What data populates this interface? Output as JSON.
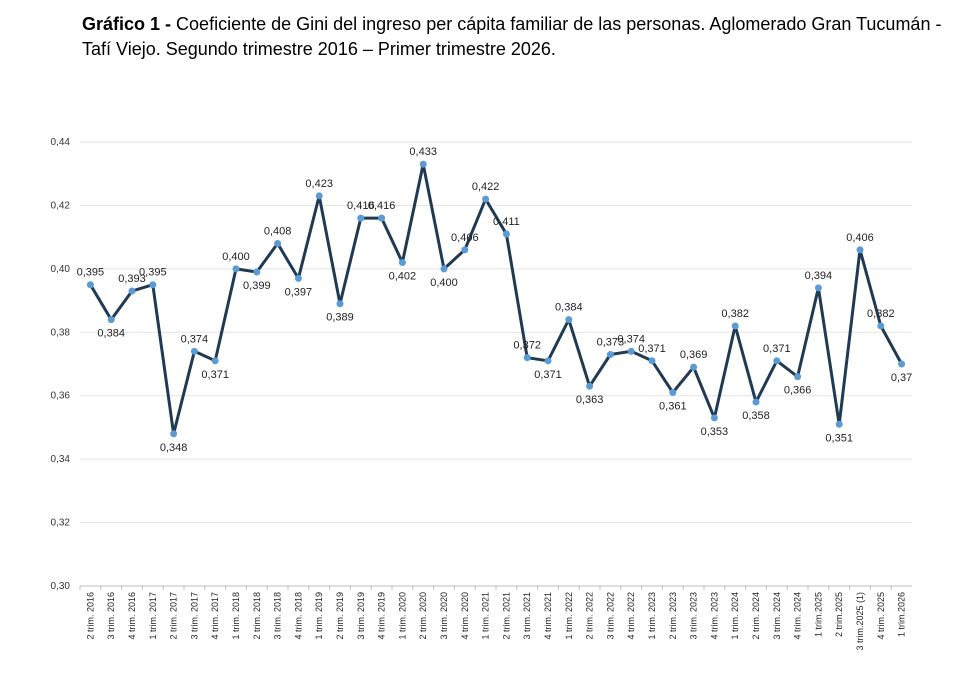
{
  "title": {
    "prefix": "Gráfico 1 -",
    "text": "Coeficiente de Gini del ingreso per cápita familiar de las personas. Aglomerado Gran Tucumán - Tafí Viejo. Segundo trimestre 2016 – Primer trimestre 2026."
  },
  "chart_data": {
    "type": "line",
    "title": "",
    "xlabel": "",
    "ylabel": "",
    "ylim": [
      0.3,
      0.44
    ],
    "yticks": [
      "0,30",
      "0,32",
      "0,34",
      "0,36",
      "0,38",
      "0,40",
      "0,42",
      "0,44"
    ],
    "grid": true,
    "line_color": "#1f3a52",
    "marker_color": "#5b9bd5",
    "categories": [
      "2 trim. 2016",
      "3 trim. 2016",
      "4 trim. 2016",
      "1 trim. 2017",
      "2 trim. 2017",
      "3 trim. 2017",
      "4 trim. 2017",
      "1 trim. 2018",
      "2 trim. 2018",
      "3 trim. 2018",
      "4 trim. 2018",
      "1 trim. 2019",
      "2 trim. 2019",
      "3 trim. 2019",
      "4 trim. 2019",
      "1 trim. 2020",
      "2 trim. 2020",
      "3 trim. 2020",
      "4 trim. 2020",
      "1 trim. 2021",
      "2 trim. 2021",
      "3 trim. 2021",
      "4 trim. 2021",
      "1 trim. 2022",
      "2 trim. 2022",
      "3 trim. 2022",
      "4 trim. 2022",
      "1 trim. 2023",
      "2 trim. 2023",
      "3 trim. 2023",
      "4 trim. 2023",
      "1 trim. 2024",
      "2 trim. 2024",
      "3 trim. 2024",
      "4 trim. 2024",
      "1 trim.2025",
      "2 trim.2025",
      "3 trim.2025 (1)",
      "4 trim. 2025",
      "1 trim.2026"
    ],
    "values": [
      0.395,
      0.384,
      0.393,
      0.395,
      0.348,
      0.374,
      0.371,
      0.4,
      0.399,
      0.408,
      0.397,
      0.423,
      0.389,
      0.416,
      0.416,
      0.402,
      0.433,
      0.4,
      0.406,
      0.422,
      0.411,
      0.372,
      0.371,
      0.384,
      0.363,
      0.373,
      0.374,
      0.371,
      0.361,
      0.369,
      0.353,
      0.382,
      0.358,
      0.371,
      0.366,
      0.394,
      0.351,
      0.406,
      0.382,
      0.37
    ],
    "labels": [
      "0,395",
      "0,384",
      "0,393",
      "0,395",
      "0,348",
      "0,374",
      "0,371",
      "0,400",
      "0,399",
      "0,408",
      "0,397",
      "0,423",
      "0,389",
      "0,416",
      "0,416",
      "0,402",
      "0,433",
      "0,400",
      "0,406",
      "0,422",
      "0,411",
      "0,372",
      "0,371",
      "0,384",
      "0,363",
      "0,373",
      "0,374",
      "0,371",
      "0,361",
      "0,369",
      "0,353",
      "0,382",
      "0,358",
      "0,371",
      "0,366",
      "0,394",
      "0,351",
      "0,406",
      "0,382",
      "0,37"
    ]
  }
}
